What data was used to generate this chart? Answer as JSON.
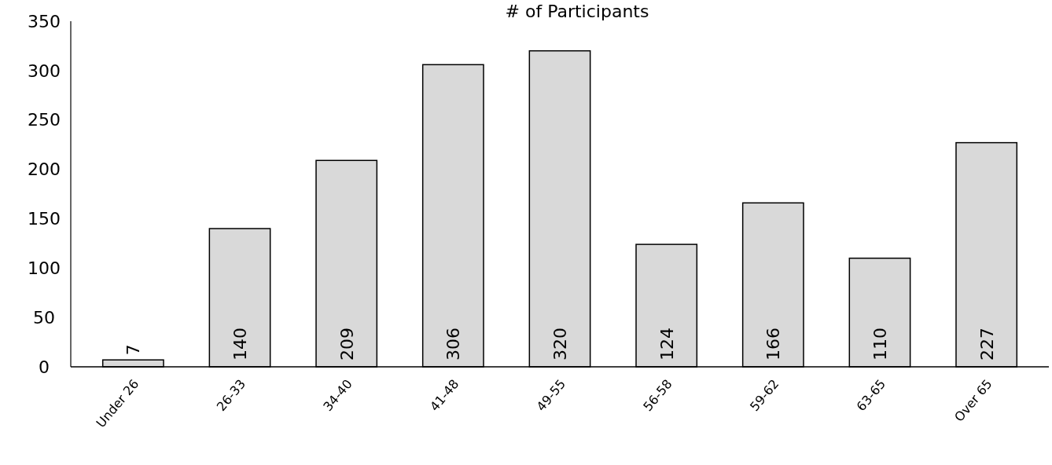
{
  "chart_data": {
    "type": "bar",
    "title": "# of Participants",
    "categories": [
      "Under 26",
      "26-33",
      "34-40",
      "41-48",
      "49-55",
      "56-58",
      "59-62",
      "63-65",
      "Over 65"
    ],
    "values": [
      7,
      140,
      209,
      306,
      320,
      124,
      166,
      110,
      227
    ],
    "color": "#d9d9d9",
    "ylim": [
      0,
      350
    ],
    "yticks": [
      0,
      50,
      100,
      150,
      200,
      250,
      300,
      350
    ],
    "data_labels": true,
    "grid": false
  }
}
